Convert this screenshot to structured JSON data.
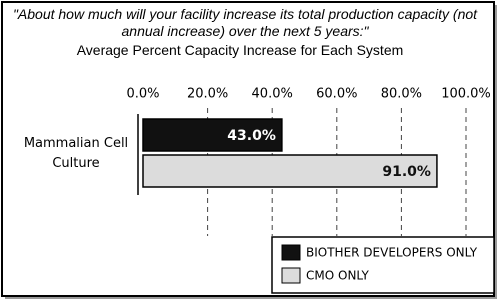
{
  "chart_data": {
    "type": "hbar",
    "title": "\"About how much will your facility increase its total production capacity (not annual increase) over the next 5 years:\"",
    "subtitle": "Average Percent Capacity Increase for Each System",
    "categories": [
      "Mammalian Cell Culture"
    ],
    "series": [
      {
        "name": "BIOTHER DEVELOPERS ONLY",
        "color": "#111111",
        "label_color": "#ffffff",
        "values": [
          43
        ],
        "value_labels": [
          "43.0%"
        ]
      },
      {
        "name": "CMO ONLY",
        "color": "#dcdcdc",
        "label_color": "#111111",
        "values": [
          91
        ],
        "value_labels": [
          "91.0%"
        ]
      }
    ],
    "xlim": [
      0,
      100
    ],
    "xticks": [
      {
        "value": 0,
        "label": "0.0%"
      },
      {
        "value": 20,
        "label": "20.0%"
      },
      {
        "value": 40,
        "label": "40.0%"
      },
      {
        "value": 60,
        "label": "60.0%"
      },
      {
        "value": 80,
        "label": "80.0%"
      },
      {
        "value": 100,
        "label": "100.0%"
      }
    ],
    "grid": true,
    "legend": "lower right"
  }
}
